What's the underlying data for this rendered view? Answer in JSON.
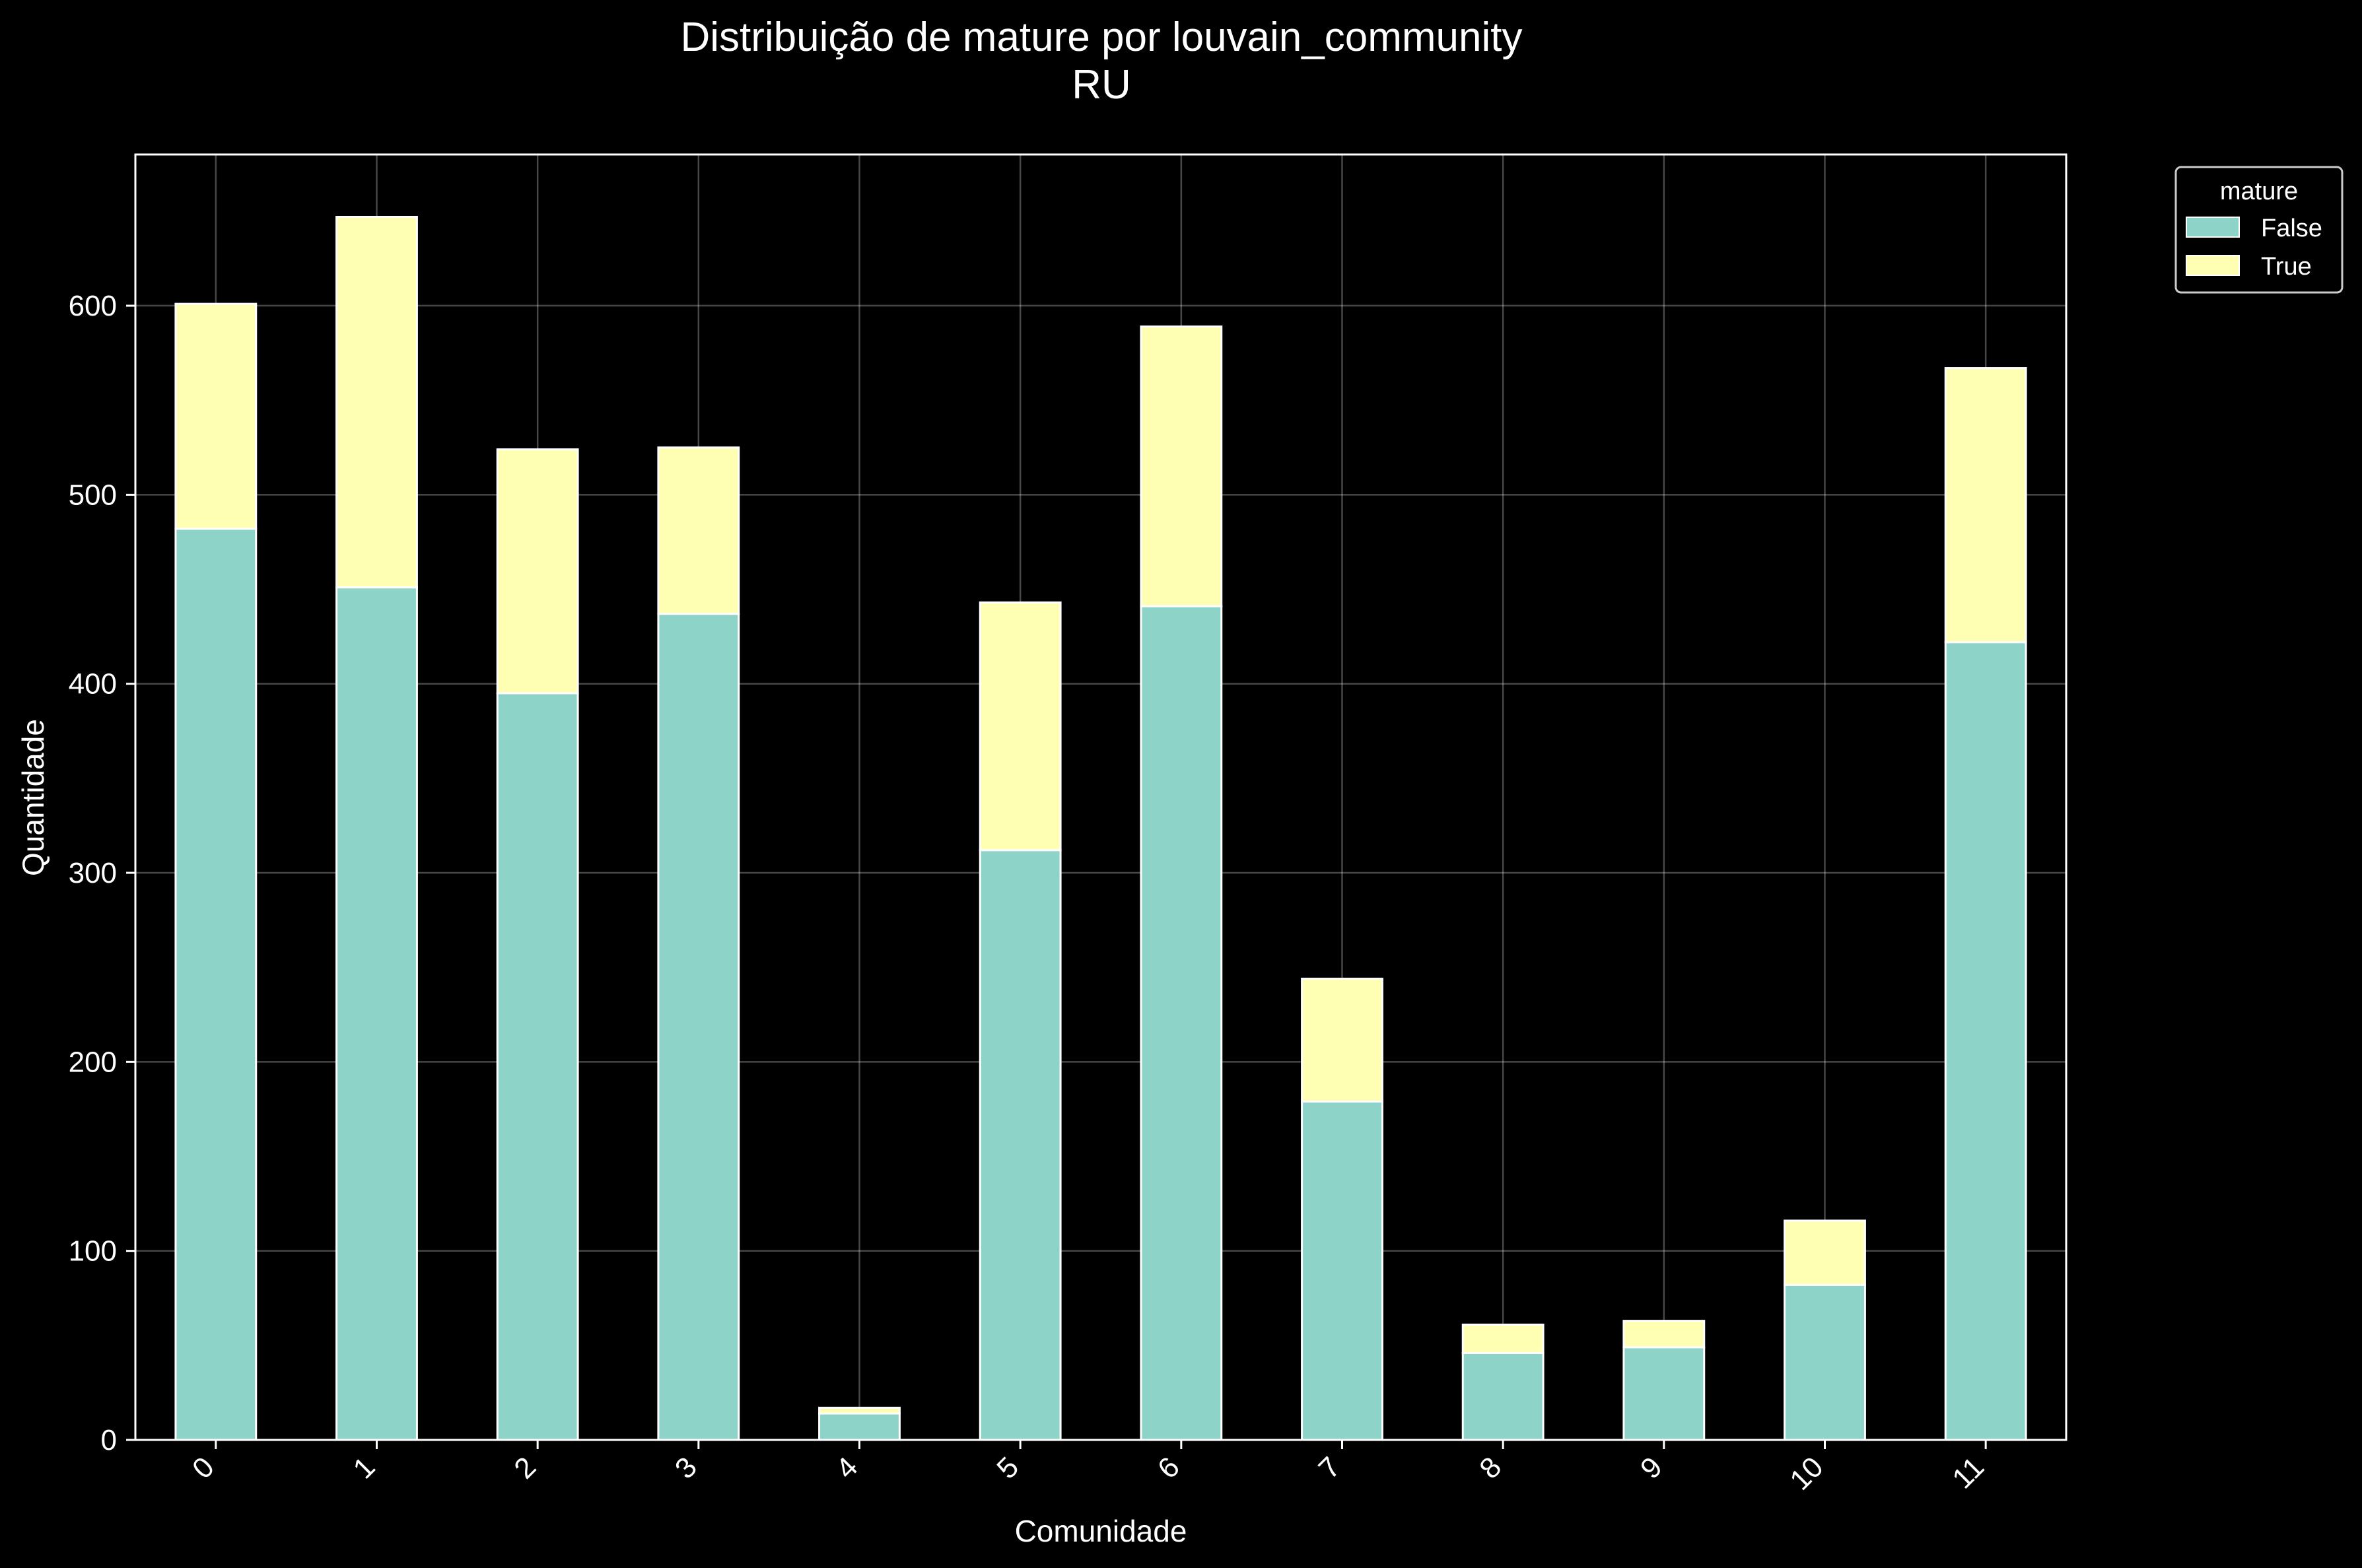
{
  "chart_data": {
    "type": "bar",
    "stacked": true,
    "title": "Distribuição de mature por louvain_community",
    "subtitle": "RU",
    "xlabel": "Comunidade",
    "ylabel": "Quantidade",
    "categories": [
      "0",
      "1",
      "2",
      "3",
      "4",
      "5",
      "6",
      "7",
      "8",
      "9",
      "10",
      "11"
    ],
    "series": [
      {
        "name": "False",
        "color": "#8dd3c7",
        "values": [
          482,
          451,
          395,
          437,
          14,
          312,
          441,
          179,
          46,
          49,
          82,
          422
        ]
      },
      {
        "name": "True",
        "color": "#ffffb3",
        "values": [
          119,
          196,
          129,
          88,
          3,
          131,
          148,
          65,
          15,
          14,
          34,
          145
        ]
      }
    ],
    "ylim": [
      0,
      680
    ],
    "yticks": [
      0,
      100,
      200,
      300,
      400,
      500,
      600
    ],
    "grid": true,
    "legend": {
      "title": "mature",
      "placement": "outside-top-right"
    },
    "background": "#000000",
    "edgecolor": "#ffffff"
  }
}
